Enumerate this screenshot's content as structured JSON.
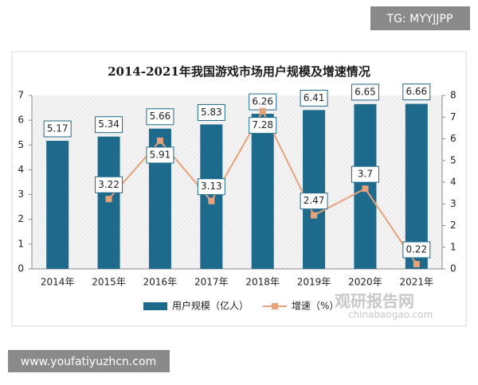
{
  "watermarks": {
    "top": "TG: MYYJJPP",
    "bottom": "www.youfatiyuzhcn.com",
    "logo": "观研报告网",
    "site": "chinabaogao.com"
  },
  "chart_data": {
    "type": "bar",
    "title": "2014-2021年我国游戏市场用户规模及增速情况",
    "categories": [
      "2014年",
      "2015年",
      "2016年",
      "2017年",
      "2018年",
      "2019年",
      "2020年",
      "2021年"
    ],
    "series": [
      {
        "name": "用户规模（亿人）",
        "type": "bar",
        "color": "#1d6a8c",
        "values": [
          5.17,
          5.34,
          5.66,
          5.83,
          6.26,
          6.41,
          6.65,
          6.66
        ]
      },
      {
        "name": "增速（%）",
        "type": "line",
        "axis": "y2",
        "color": "#e8a27a",
        "values": [
          null,
          3.22,
          5.91,
          3.13,
          7.28,
          2.47,
          3.7,
          0.22
        ]
      }
    ],
    "ylim": [
      0,
      7
    ],
    "yticks": [
      0,
      1,
      2,
      3,
      4,
      5,
      6,
      7
    ],
    "y2lim": [
      0,
      8
    ],
    "y2ticks": [
      0,
      1,
      2,
      3,
      4,
      5,
      6,
      7,
      8
    ],
    "legend": "bottom"
  }
}
